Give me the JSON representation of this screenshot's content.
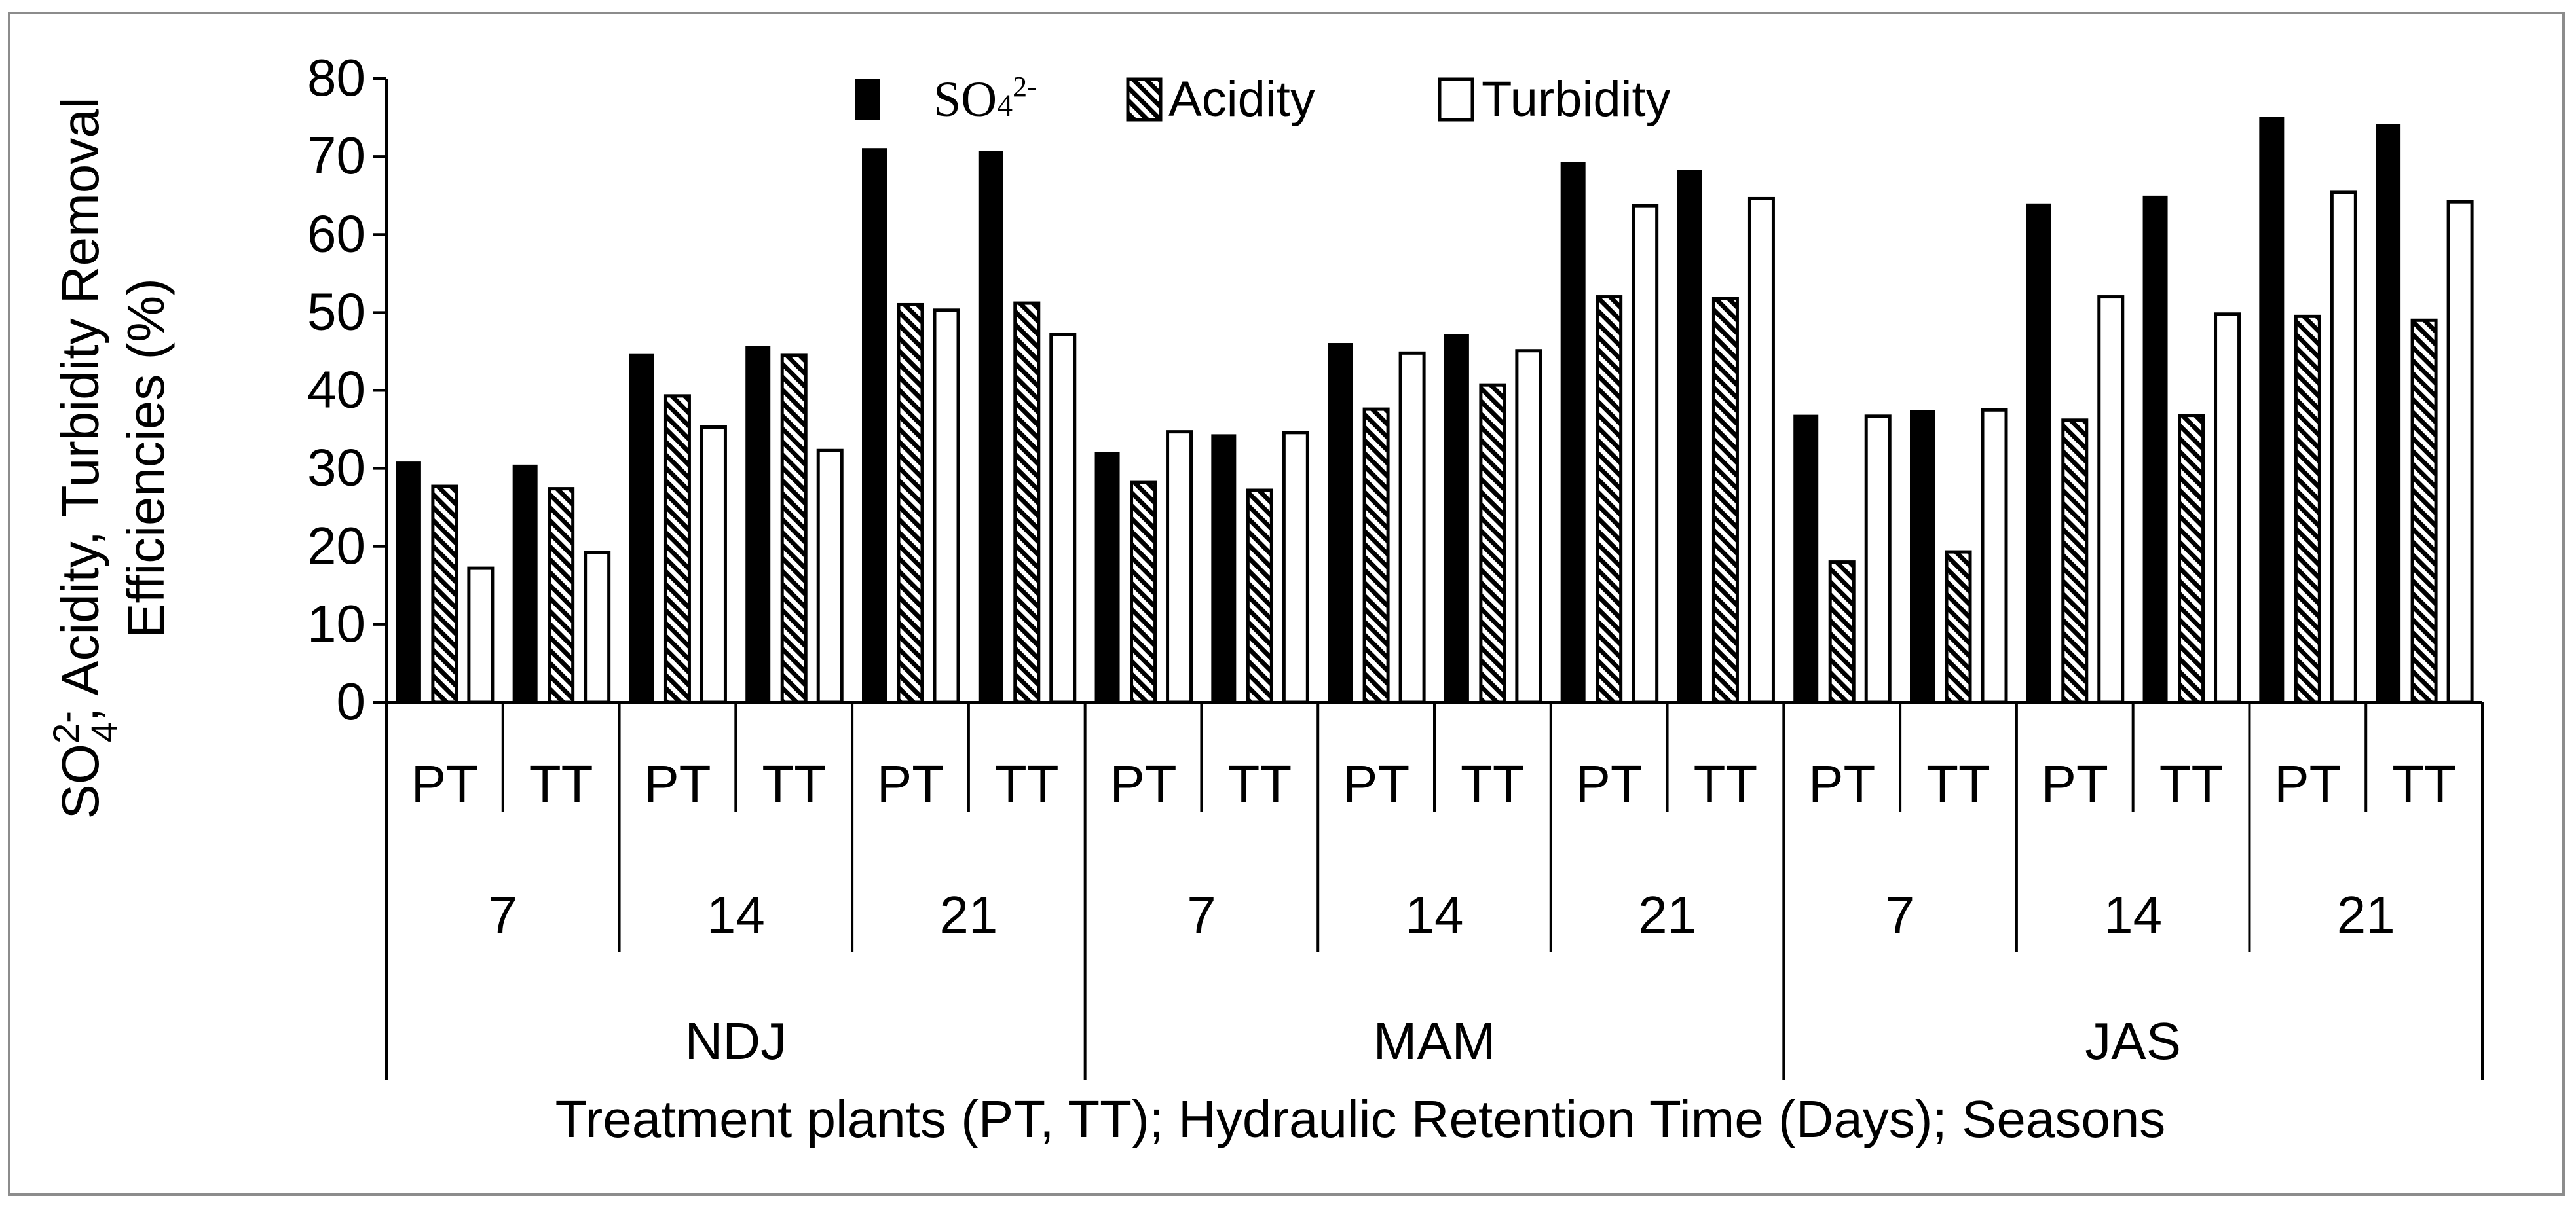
{
  "chart_data": {
    "type": "bar",
    "title": "",
    "ylabel_line1_base": "SO",
    "ylabel_line1_sub": "4",
    "ylabel_line1_sup": "2-",
    "ylabel_line1_rest": ", Acidity, Turbidity Removal",
    "ylabel_line2": "Efficiencies (%)",
    "xlabel": "Treatment plants (PT, TT); Hydraulic Retention Time (Days); Seasons",
    "ylim": [
      0,
      80
    ],
    "yticks": [
      "0",
      "10",
      "20",
      "30",
      "40",
      "50",
      "60",
      "70",
      "80"
    ],
    "seasons": [
      "NDJ",
      "MAM",
      "JAS"
    ],
    "hrt_days": [
      "7",
      "14",
      "21"
    ],
    "plants": [
      "PT",
      "TT"
    ],
    "categories": [
      "NDJ 7 PT",
      "NDJ 7 TT",
      "NDJ 14 PT",
      "NDJ 14 TT",
      "NDJ 21 PT",
      "NDJ 21 TT",
      "MAM 7 PT",
      "MAM 7 TT",
      "MAM 14 PT",
      "MAM 14 TT",
      "MAM 21 PT",
      "MAM 21 TT",
      "JAS 7 PT",
      "JAS 7 TT",
      "JAS 14 PT",
      "JAS 14 TT",
      "JAS 21 PT",
      "JAS 21 TT"
    ],
    "legend": {
      "position": "top-center",
      "so4_base": "SO",
      "so4_sub": "4",
      "so4_sup": "2-",
      "acidity": "Acidity",
      "turbidity": "Turbidity"
    },
    "series": [
      {
        "name": "SO42-",
        "style": "solid",
        "color": "#000000",
        "values": [
          30.8,
          30.4,
          44.6,
          45.6,
          71.0,
          70.6,
          32.0,
          34.3,
          46.0,
          47.1,
          69.2,
          68.2,
          36.8,
          37.4,
          63.9,
          64.9,
          75.0,
          74.1
        ]
      },
      {
        "name": "Acidity",
        "style": "hatched",
        "color": "#000000",
        "values": [
          27.7,
          27.4,
          39.3,
          44.5,
          51.0,
          51.2,
          28.2,
          27.2,
          37.6,
          40.7,
          52.0,
          51.8,
          18.0,
          19.3,
          36.2,
          36.8,
          49.5,
          49.0
        ]
      },
      {
        "name": "Turbidity",
        "style": "open",
        "color": "#ffffff",
        "values": [
          17.2,
          19.2,
          35.3,
          32.3,
          50.3,
          47.2,
          34.7,
          34.6,
          44.8,
          45.1,
          63.7,
          64.6,
          36.7,
          37.5,
          52.0,
          49.8,
          65.4,
          64.2
        ]
      }
    ]
  }
}
